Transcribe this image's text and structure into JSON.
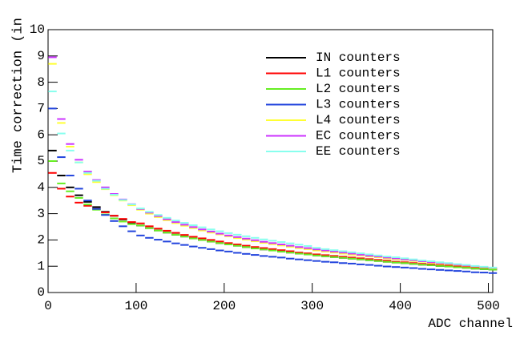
{
  "chart_data": {
    "type": "step",
    "y_label": "Time correction (in",
    "x_label": "ADC channel",
    "x": [
      5,
      15,
      25,
      35,
      45,
      55,
      65,
      75,
      85,
      95,
      105,
      115,
      125,
      135,
      145,
      155,
      165,
      175,
      185,
      195,
      205,
      215,
      225,
      235,
      245,
      255,
      265,
      275,
      285,
      295,
      305,
      315,
      325,
      335,
      345,
      355,
      365,
      375,
      385,
      395,
      405,
      415,
      425,
      435,
      445,
      455,
      465,
      475,
      485,
      495,
      505
    ],
    "xlim": [
      0,
      505
    ],
    "ylim": [
      0,
      10
    ],
    "xticks": [
      0,
      100,
      200,
      300,
      400,
      500
    ],
    "yticks": [
      0,
      1,
      2,
      3,
      4,
      5,
      6,
      7,
      8,
      9,
      10
    ],
    "legend": "top-right",
    "series": [
      {
        "name": "IN counters",
        "color": "#000000",
        "values": [
          5.4,
          4.45,
          4.0,
          3.7,
          3.45,
          3.25,
          3.07,
          2.92,
          2.78,
          2.66,
          2.55,
          2.45,
          2.36,
          2.28,
          2.2,
          2.13,
          2.06,
          2.0,
          1.94,
          1.88,
          1.83,
          1.78,
          1.73,
          1.68,
          1.64,
          1.6,
          1.56,
          1.52,
          1.48,
          1.45,
          1.41,
          1.38,
          1.35,
          1.32,
          1.29,
          1.26,
          1.23,
          1.2,
          1.17,
          1.14,
          1.12,
          1.09,
          1.06,
          1.04,
          1.01,
          0.99,
          0.96,
          0.94,
          0.91,
          0.89,
          0.87
        ]
      },
      {
        "name": "L1 counters",
        "color": "#ff0000",
        "values": [
          4.55,
          3.95,
          3.65,
          3.42,
          3.3,
          3.18,
          3.05,
          2.92,
          2.8,
          2.68,
          2.63,
          2.52,
          2.43,
          2.35,
          2.27,
          2.19,
          2.12,
          2.06,
          2.0,
          1.94,
          1.88,
          1.83,
          1.78,
          1.73,
          1.69,
          1.65,
          1.61,
          1.57,
          1.52,
          1.49,
          1.45,
          1.42,
          1.39,
          1.36,
          1.33,
          1.3,
          1.27,
          1.24,
          1.21,
          1.17,
          1.15,
          1.12,
          1.09,
          1.07,
          1.04,
          1.02,
          0.99,
          0.97,
          0.94,
          0.92,
          0.9
        ]
      },
      {
        "name": "L2 counters",
        "color": "#66ee22",
        "values": [
          5.0,
          4.15,
          3.85,
          3.6,
          3.35,
          3.15,
          2.97,
          2.82,
          2.7,
          2.6,
          2.55,
          2.45,
          2.36,
          2.28,
          2.2,
          2.13,
          2.06,
          2.0,
          1.94,
          1.88,
          1.83,
          1.78,
          1.73,
          1.68,
          1.64,
          1.6,
          1.56,
          1.52,
          1.48,
          1.45,
          1.41,
          1.38,
          1.35,
          1.32,
          1.29,
          1.26,
          1.23,
          1.2,
          1.17,
          1.14,
          1.12,
          1.09,
          1.06,
          1.04,
          1.01,
          0.99,
          0.96,
          0.94,
          0.91,
          0.89,
          0.87
        ]
      },
      {
        "name": "L3 counters",
        "color": "#2244dd",
        "values": [
          7.0,
          5.15,
          4.45,
          3.95,
          3.5,
          3.18,
          2.95,
          2.72,
          2.52,
          2.33,
          2.17,
          2.08,
          2.01,
          1.94,
          1.87,
          1.81,
          1.75,
          1.7,
          1.65,
          1.6,
          1.56,
          1.51,
          1.47,
          1.43,
          1.39,
          1.36,
          1.33,
          1.29,
          1.26,
          1.23,
          1.2,
          1.17,
          1.15,
          1.12,
          1.1,
          1.07,
          1.05,
          1.02,
          0.99,
          0.97,
          0.95,
          0.93,
          0.9,
          0.88,
          0.86,
          0.84,
          0.82,
          0.8,
          0.77,
          0.76,
          0.74
        ]
      },
      {
        "name": "L4 counters",
        "color": "#ffff33",
        "values": [
          8.7,
          6.45,
          5.55,
          4.95,
          4.5,
          4.2,
          3.93,
          3.7,
          3.5,
          3.32,
          3.15,
          3.0,
          2.87,
          2.75,
          2.64,
          2.54,
          2.45,
          2.36,
          2.28,
          2.21,
          2.14,
          2.07,
          2.01,
          1.95,
          1.89,
          1.84,
          1.79,
          1.74,
          1.69,
          1.65,
          1.6,
          1.56,
          1.52,
          1.48,
          1.44,
          1.41,
          1.37,
          1.34,
          1.3,
          1.27,
          1.24,
          1.2,
          1.17,
          1.14,
          1.11,
          1.08,
          1.05,
          1.02,
          0.99,
          0.96,
          0.93
        ]
      },
      {
        "name": "EC counters",
        "color": "#cc33ff",
        "values": [
          8.95,
          6.6,
          5.65,
          5.05,
          4.6,
          4.28,
          4.0,
          3.75,
          3.54,
          3.36,
          3.18,
          3.04,
          2.91,
          2.79,
          2.68,
          2.58,
          2.49,
          2.4,
          2.32,
          2.24,
          2.17,
          2.11,
          2.05,
          1.99,
          1.93,
          1.88,
          1.83,
          1.78,
          1.73,
          1.69,
          1.64,
          1.6,
          1.56,
          1.52,
          1.48,
          1.44,
          1.4,
          1.37,
          1.33,
          1.3,
          1.26,
          1.23,
          1.19,
          1.16,
          1.13,
          1.1,
          1.06,
          1.03,
          1.0,
          0.97,
          0.94
        ]
      },
      {
        "name": "EE counters",
        "color": "#88ffee",
        "values": [
          7.65,
          6.05,
          5.4,
          4.95,
          4.55,
          4.25,
          3.95,
          3.72,
          3.52,
          3.35,
          3.2,
          3.07,
          2.95,
          2.84,
          2.74,
          2.65,
          2.56,
          2.48,
          2.4,
          2.33,
          2.26,
          2.2,
          2.14,
          2.08,
          2.02,
          1.97,
          1.92,
          1.87,
          1.82,
          1.77,
          1.7,
          1.65,
          1.61,
          1.57,
          1.53,
          1.49,
          1.45,
          1.41,
          1.37,
          1.34,
          1.3,
          1.26,
          1.22,
          1.19,
          1.15,
          1.12,
          1.08,
          1.05,
          1.01,
          0.98,
          0.95
        ]
      }
    ]
  }
}
